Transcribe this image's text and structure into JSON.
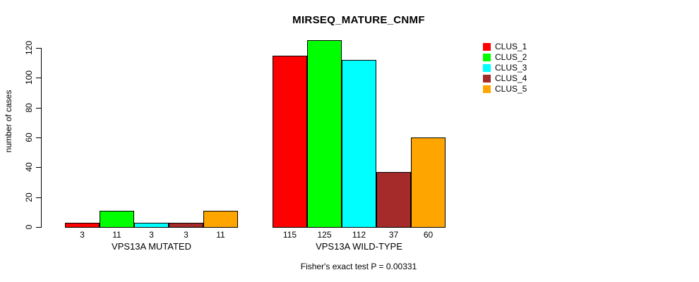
{
  "title": "MIRSEQ_MATURE_CNMF",
  "footer": "Fisher's exact test P = 0.00331",
  "chart_data": {
    "type": "bar",
    "title": "MIRSEQ_MATURE_CNMF",
    "ylabel": "number of cases",
    "xlabel": "",
    "ylim": [
      0,
      125
    ],
    "yticks": [
      0,
      20,
      40,
      60,
      80,
      100,
      120
    ],
    "grid": false,
    "legend_position": "top-right",
    "groups": [
      "VPS13A MUTATED",
      "VPS13A WILD-TYPE"
    ],
    "series": [
      {
        "name": "CLUS_1",
        "color": "#FF0000",
        "values": [
          3,
          115
        ]
      },
      {
        "name": "CLUS_2",
        "color": "#00FF00",
        "values": [
          11,
          125
        ]
      },
      {
        "name": "CLUS_3",
        "color": "#00FFFF",
        "values": [
          3,
          112
        ]
      },
      {
        "name": "CLUS_4",
        "color": "#A52A2A",
        "values": [
          3,
          37
        ]
      },
      {
        "name": "CLUS_5",
        "color": "#FFA500",
        "values": [
          11,
          60
        ]
      }
    ],
    "bar_value_labels": [
      [
        3,
        11,
        3,
        3,
        11
      ],
      [
        115,
        125,
        112,
        37,
        60
      ]
    ],
    "annotation": "Fisher's exact test P = 0.00331",
    "bar_border_color": "#000000"
  }
}
